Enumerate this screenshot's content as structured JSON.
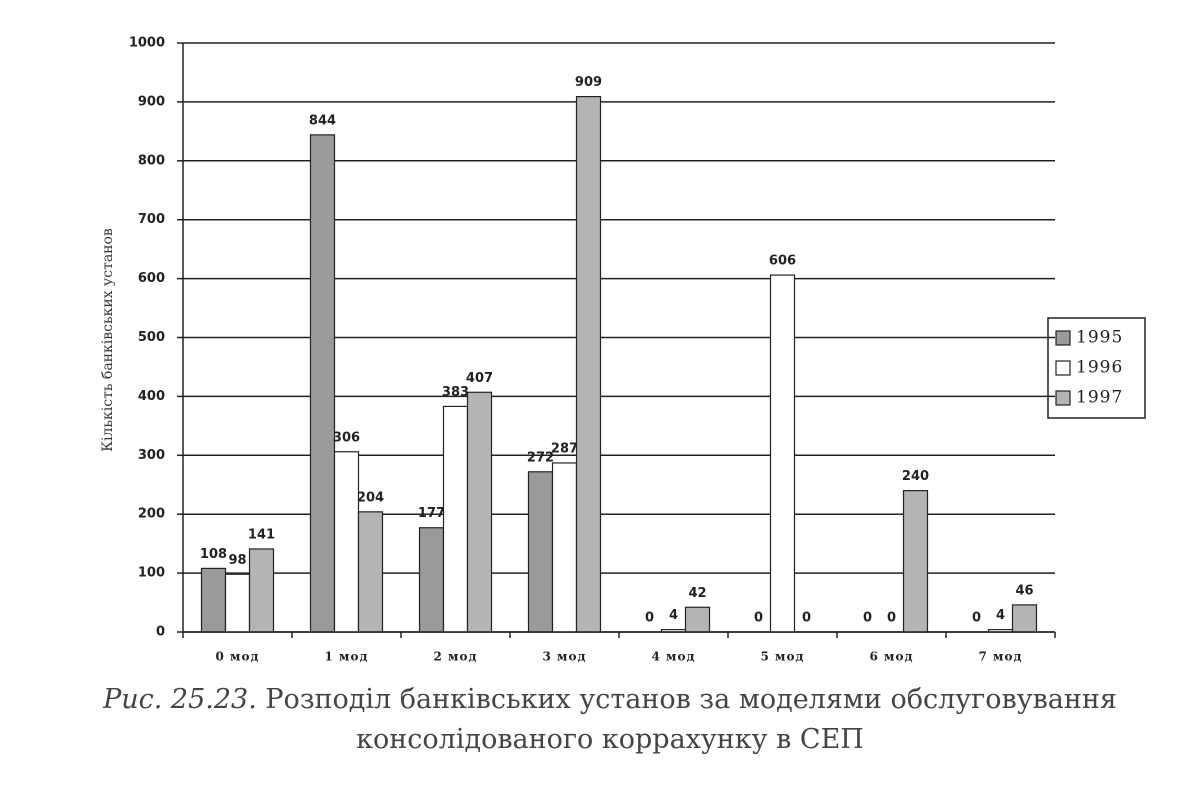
{
  "chart_data": {
    "type": "bar",
    "y_label": "Кількість банківських установ",
    "categories": [
      "0 мод",
      "1 мод",
      "2 мод",
      "3 мод",
      "4 мод",
      "5 мод",
      "6 мод",
      "7 мод"
    ],
    "series": [
      {
        "name": "1995",
        "color": "#9a9a9a",
        "values": [
          108,
          844,
          177,
          272,
          0,
          0,
          0,
          0
        ]
      },
      {
        "name": "1996",
        "color": "#ffffff",
        "values": [
          98,
          306,
          383,
          287,
          4,
          606,
          0,
          4
        ]
      },
      {
        "name": "1997",
        "color": "#b4b4b4",
        "values": [
          141,
          204,
          407,
          909,
          42,
          0,
          240,
          46
        ]
      }
    ],
    "ylim": [
      0,
      1000
    ],
    "yticks": [
      0,
      100,
      200,
      300,
      400,
      500,
      600,
      700,
      800,
      900,
      1000
    ],
    "grid": true,
    "legend": "right"
  },
  "caption_label": "Рис. 25.23.",
  "caption": "Розподіл банківських установ за моделями обслуговування консолідованого коррахунку в СЕП"
}
